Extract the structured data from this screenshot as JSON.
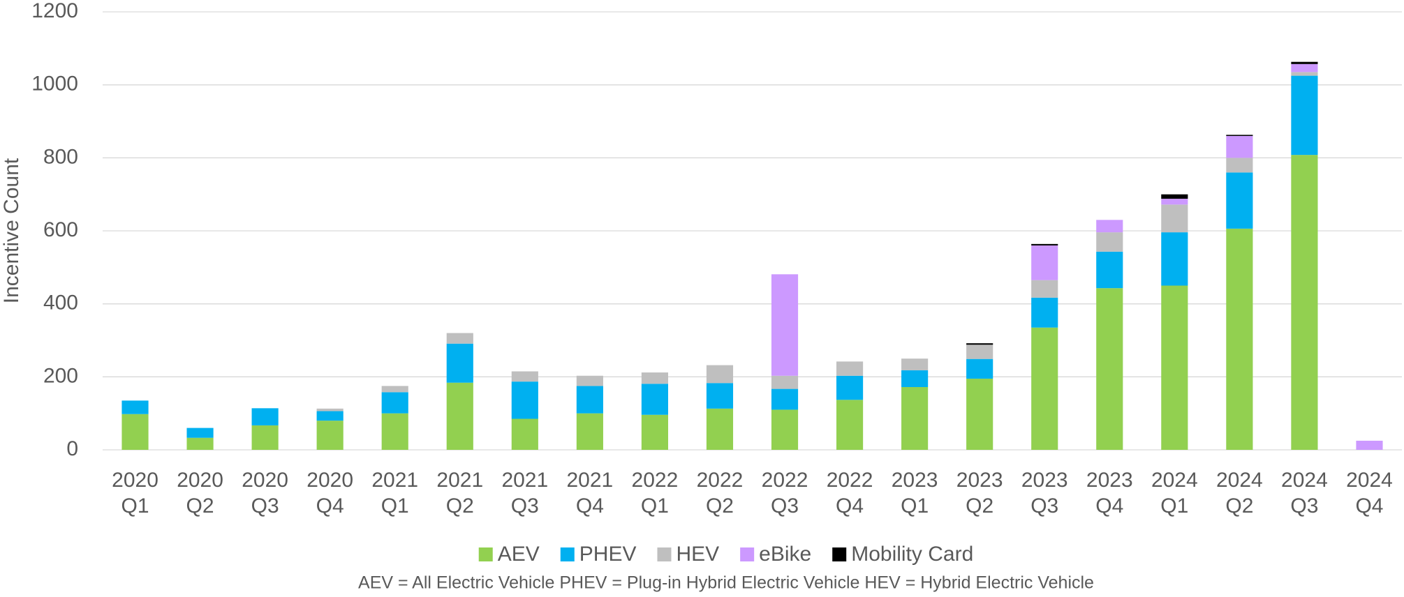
{
  "chart_data": {
    "type": "stacked_bar",
    "y_label": "Incentive Count",
    "note": "AEV = All Electric Vehicle    PHEV = Plug-in Hybrid Electric Vehicle    HEV = Hybrid Electric Vehicle",
    "categories": [
      "2020 Q1",
      "2020 Q2",
      "2020 Q3",
      "2020 Q4",
      "2021 Q1",
      "2021 Q2",
      "2021 Q3",
      "2021 Q4",
      "2022 Q1",
      "2022 Q2",
      "2022 Q3",
      "2022 Q4",
      "2023 Q1",
      "2023 Q2",
      "2023 Q3",
      "2023 Q4",
      "2024 Q1",
      "2024 Q2",
      "2024 Q3",
      "2024 Q4"
    ],
    "series": [
      {
        "name": "AEV",
        "color": "#92d050",
        "values": [
          98,
          33,
          67,
          80,
          100,
          184,
          85,
          100,
          96,
          113,
          110,
          137,
          172,
          195,
          335,
          443,
          450,
          606,
          808,
          0
        ]
      },
      {
        "name": "PHEV",
        "color": "#00b0f0",
        "values": [
          37,
          27,
          47,
          26,
          58,
          107,
          102,
          75,
          85,
          70,
          57,
          66,
          46,
          54,
          82,
          100,
          146,
          154,
          217,
          0
        ]
      },
      {
        "name": "HEV",
        "color": "#bfbfbf",
        "values": [
          0,
          0,
          0,
          7,
          17,
          29,
          28,
          28,
          31,
          49,
          36,
          39,
          32,
          39,
          48,
          53,
          76,
          40,
          10,
          0
        ]
      },
      {
        "name": "eBike",
        "color": "#cc99ff",
        "values": [
          0,
          0,
          0,
          0,
          0,
          0,
          0,
          0,
          0,
          0,
          278,
          0,
          0,
          0,
          95,
          34,
          16,
          60,
          22,
          25
        ]
      },
      {
        "name": "Mobility Card",
        "color": "#000000",
        "values": [
          0,
          0,
          0,
          0,
          0,
          0,
          0,
          0,
          0,
          0,
          0,
          0,
          0,
          4,
          4,
          0,
          12,
          3,
          6,
          0
        ]
      }
    ],
    "ylim": [
      0,
      1200
    ],
    "yticks": [
      0,
      200,
      400,
      600,
      800,
      1000,
      1200
    ],
    "grid": true,
    "legend": "bottom"
  }
}
